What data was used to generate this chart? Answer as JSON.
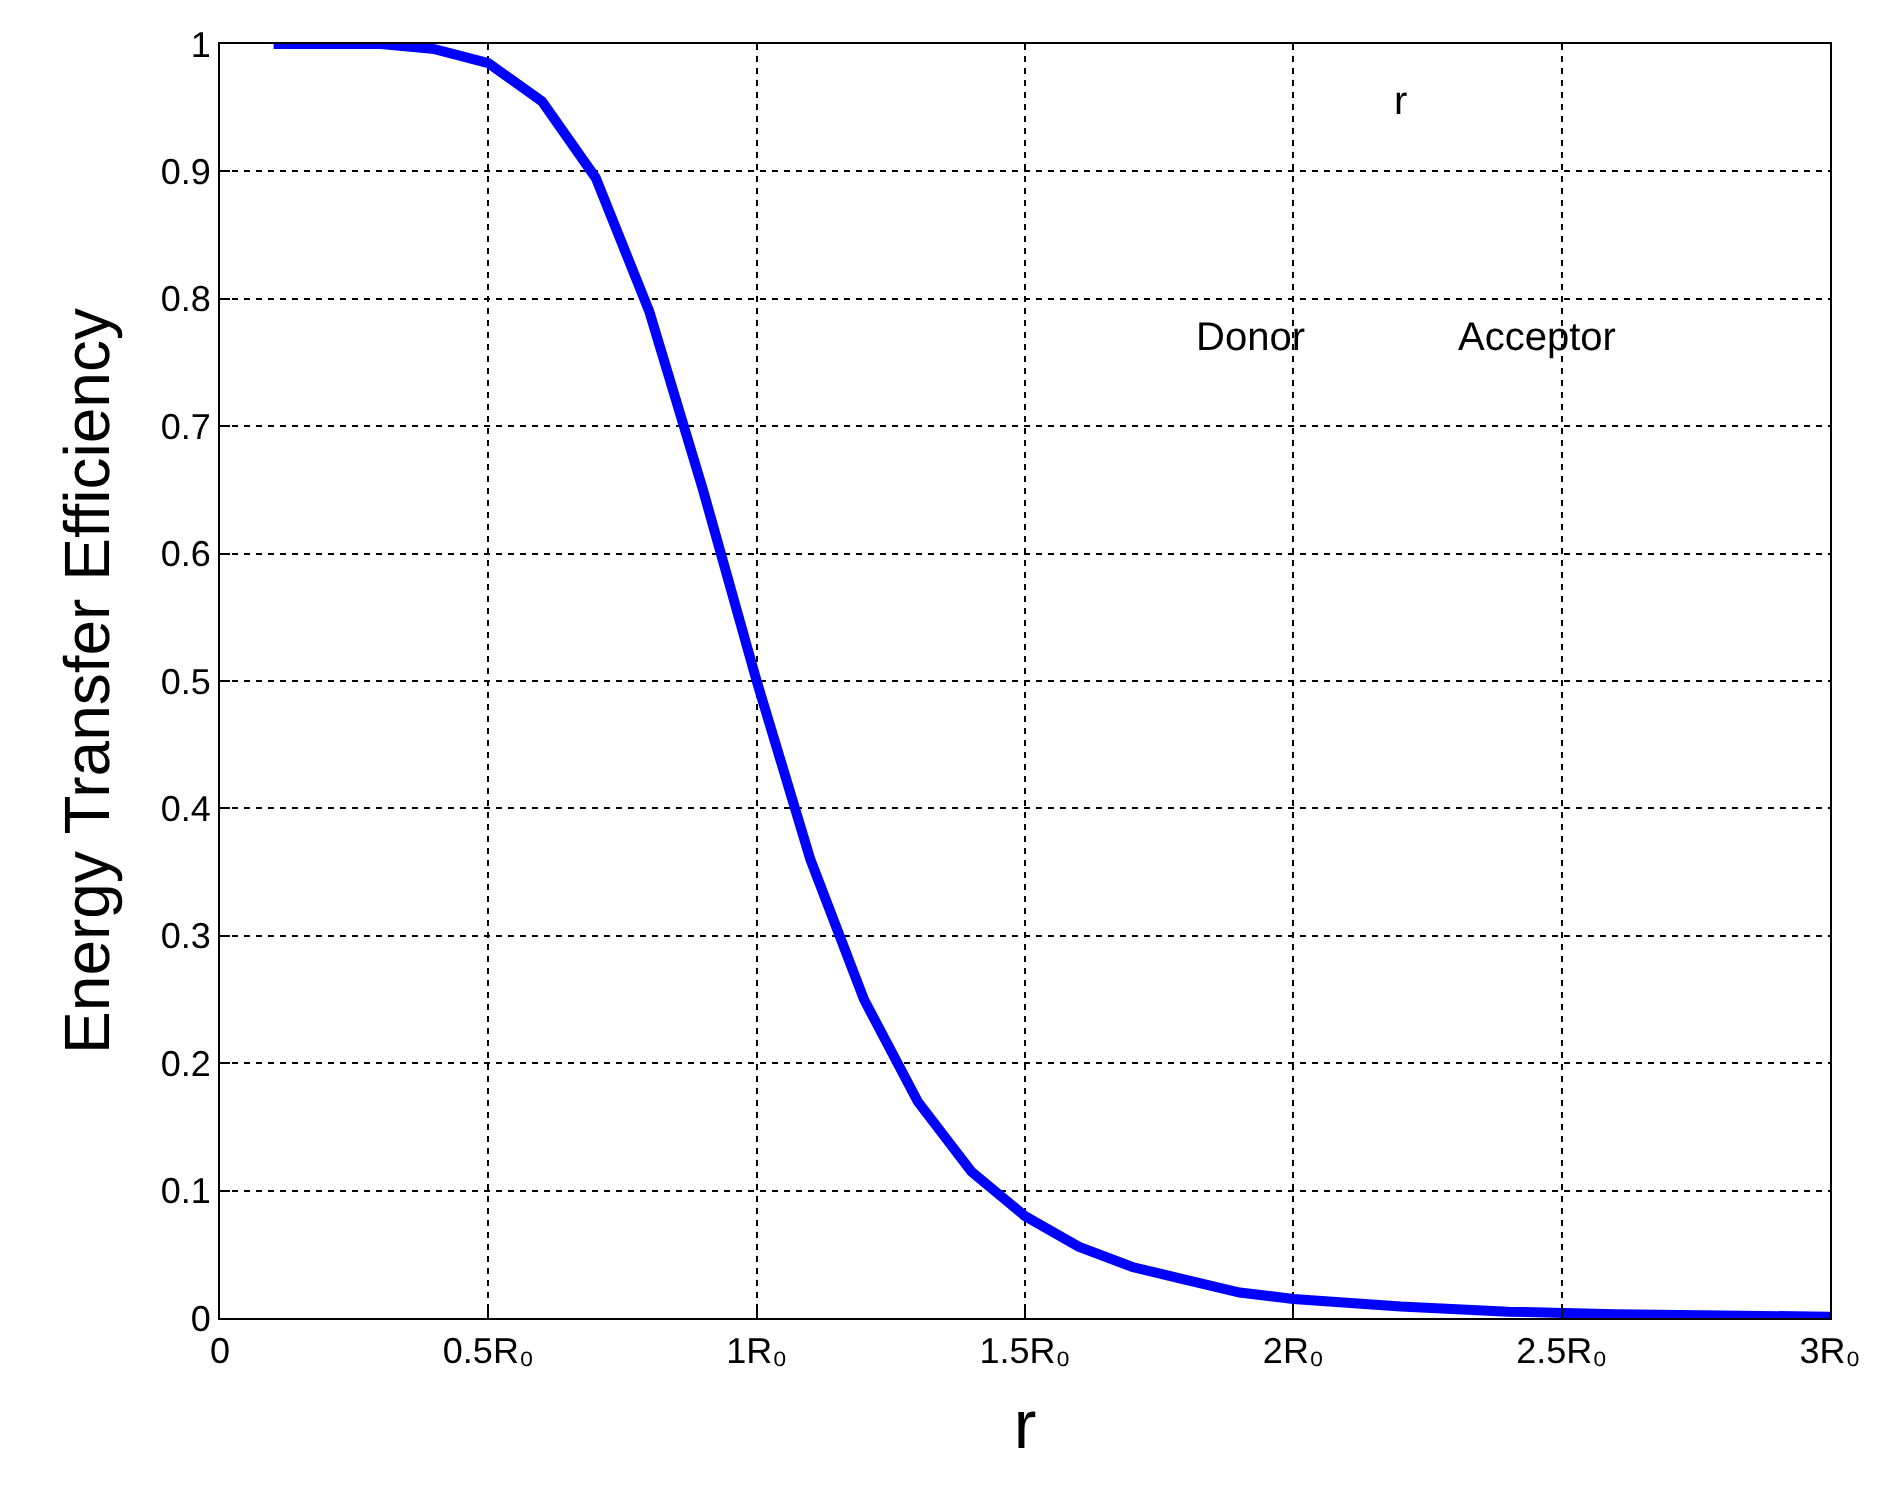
{
  "chart_data": {
    "type": "line",
    "xlabel": "r",
    "ylabel": "Energy Transfer Efficiency",
    "xlim": [
      0,
      3
    ],
    "ylim": [
      0,
      1
    ],
    "xticks": [
      0,
      {
        "value": 0.5,
        "label": "0.5R₀"
      },
      {
        "value": 1,
        "label": "1R₀"
      },
      {
        "value": 1.5,
        "label": "1.5R₀"
      },
      {
        "value": 2,
        "label": "2R₀"
      },
      {
        "value": 2.5,
        "label": "2.5R₀"
      },
      {
        "value": 3,
        "label": "3R₀"
      }
    ],
    "yticks": [
      0,
      0.1,
      0.2,
      0.3,
      0.4,
      0.5,
      0.6,
      0.7,
      0.8,
      0.9,
      1
    ],
    "grid": true,
    "marker": "none",
    "line_style": "solid",
    "annotations": [
      "r",
      "Donor",
      "Acceptor"
    ],
    "series": [
      {
        "color": "#0000ff",
        "x": [
          0.1,
          0.2,
          0.3,
          0.4,
          0.5,
          0.6,
          0.7,
          0.8,
          0.9,
          1.0,
          1.1,
          1.2,
          1.3,
          1.4,
          1.5,
          1.6,
          1.7,
          1.8,
          1.9,
          2.0,
          2.2,
          2.4,
          2.6,
          2.8,
          3.0
        ],
        "values": [
          1,
          1,
          1,
          0.996,
          0.985,
          0.955,
          0.895,
          0.79,
          0.65,
          0.5,
          0.36,
          0.25,
          0.17,
          0.115,
          0.08,
          0.056,
          0.04,
          0.03,
          0.02,
          0.015,
          0.009,
          0.005,
          0.003,
          0.002,
          0.001
        ]
      }
    ]
  }
}
